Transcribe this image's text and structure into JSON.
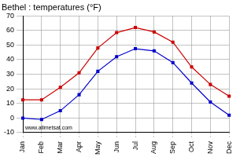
{
  "chart_data": {
    "type": "line",
    "title": "Bethel : temperatures (°F)",
    "annotation": "www.allmetsat.com",
    "categories": [
      "Jan",
      "Feb",
      "Mar",
      "Apr",
      "May",
      "Jun",
      "Jul",
      "Aug",
      "Sep",
      "Oct",
      "Nov",
      "Dec"
    ],
    "series": [
      {
        "color": "#cc0000",
        "values": [
          12.5,
          12.5,
          21,
          31,
          48,
          58.5,
          62,
          59,
          52,
          35,
          23,
          15
        ]
      },
      {
        "color": "#0000cc",
        "values": [
          0,
          -1,
          5,
          16,
          32,
          42,
          47.5,
          46,
          38,
          24,
          11,
          2
        ]
      }
    ],
    "ylim": [
      -10,
      70
    ],
    "yticks": [
      -10,
      0,
      10,
      20,
      30,
      40,
      50,
      60,
      70
    ],
    "grid": true,
    "marker": "square",
    "line_style": "solid"
  }
}
